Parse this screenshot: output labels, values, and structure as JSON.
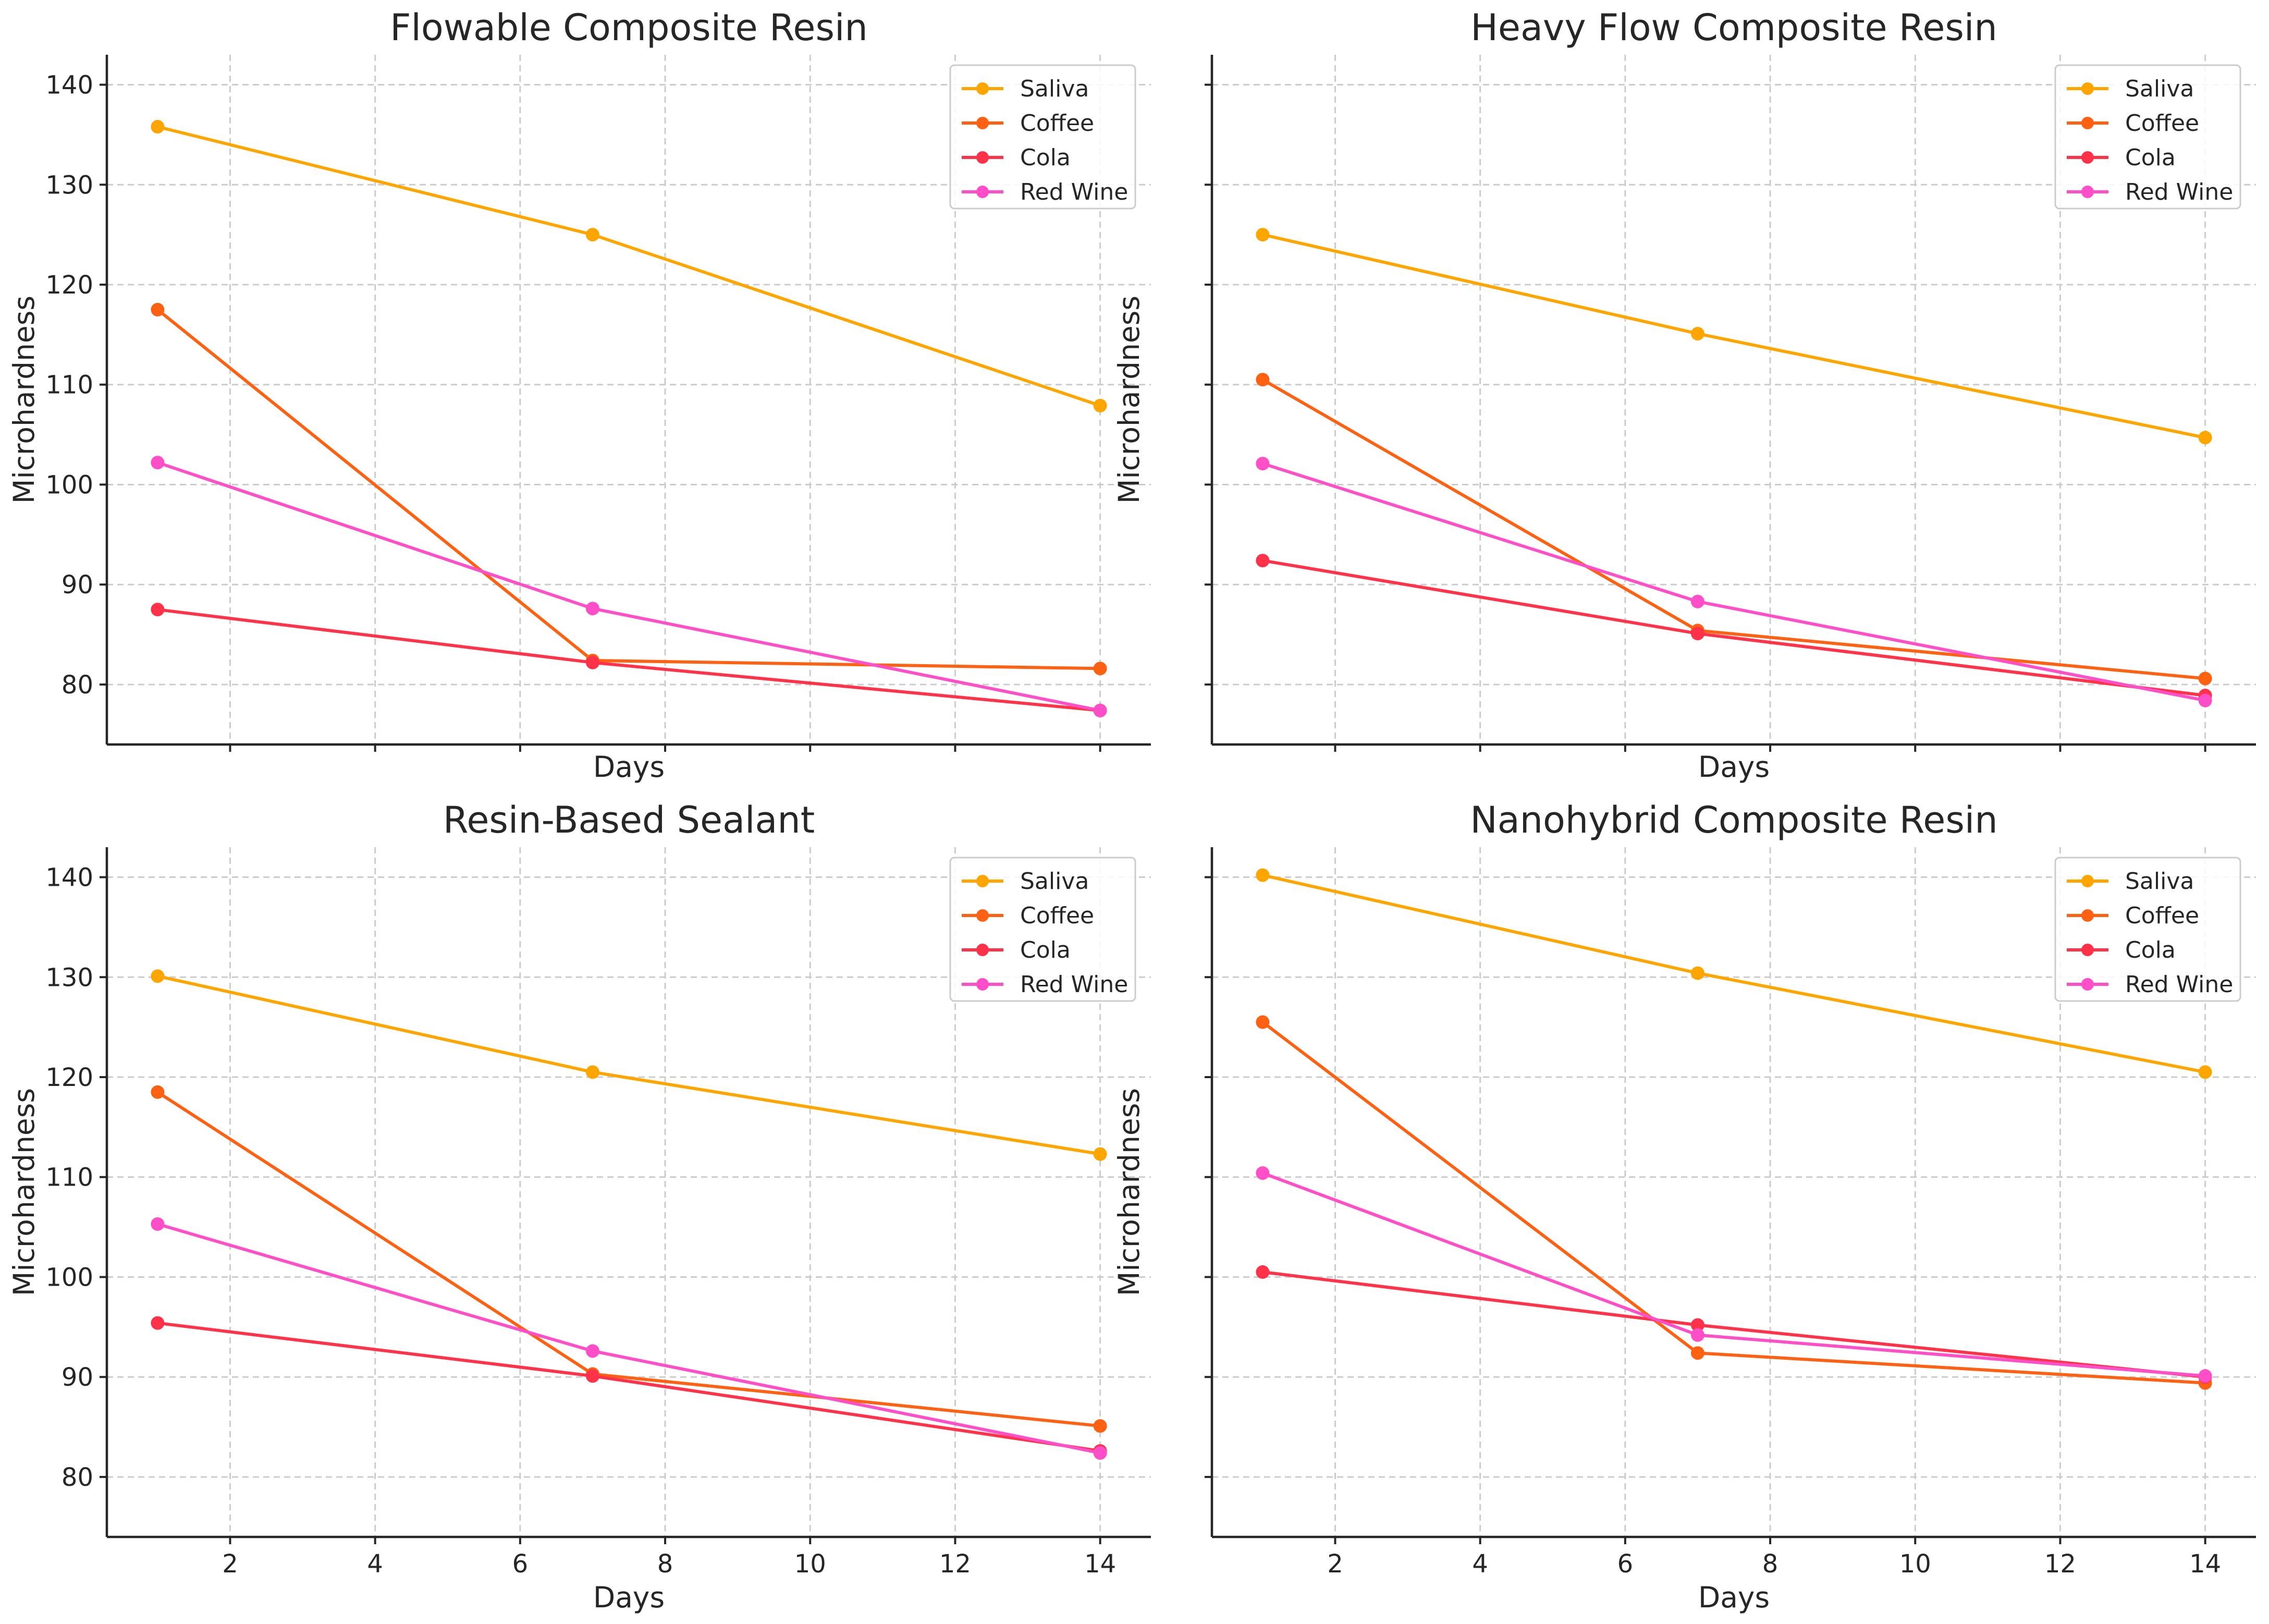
{
  "chart_data": [
    {
      "type": "line",
      "title": "Flowable Composite Resin",
      "xlabel": "Days",
      "ylabel": "Microhardness",
      "x": [
        1,
        7,
        14
      ],
      "xlim": [
        0.3,
        14.7
      ],
      "ylim": [
        74,
        143
      ],
      "xticks": [
        2,
        4,
        6,
        8,
        10,
        12,
        14
      ],
      "yticks": [
        80,
        90,
        100,
        110,
        120,
        130,
        140
      ],
      "show_xticklabels": false,
      "show_yticklabels": true,
      "grid": true,
      "legend": "top-right",
      "series": [
        {
          "name": "Saliva",
          "values": [
            135.8,
            125.0,
            107.9
          ]
        },
        {
          "name": "Coffee",
          "values": [
            117.5,
            82.4,
            81.6
          ]
        },
        {
          "name": "Cola",
          "values": [
            87.5,
            82.2,
            77.4
          ]
        },
        {
          "name": "Red Wine",
          "values": [
            102.2,
            87.6,
            77.4
          ]
        }
      ]
    },
    {
      "type": "line",
      "title": "Heavy Flow Composite Resin",
      "xlabel": "Days",
      "ylabel": "Microhardness",
      "x": [
        1,
        7,
        14
      ],
      "xlim": [
        0.3,
        14.7
      ],
      "ylim": [
        74,
        143
      ],
      "xticks": [
        2,
        4,
        6,
        8,
        10,
        12,
        14
      ],
      "yticks": [
        80,
        90,
        100,
        110,
        120,
        130,
        140
      ],
      "show_xticklabels": false,
      "show_yticklabels": false,
      "grid": true,
      "legend": "top-right",
      "series": [
        {
          "name": "Saliva",
          "values": [
            125.0,
            115.1,
            104.7
          ]
        },
        {
          "name": "Coffee",
          "values": [
            110.5,
            85.4,
            80.6
          ]
        },
        {
          "name": "Cola",
          "values": [
            92.4,
            85.1,
            78.9
          ]
        },
        {
          "name": "Red Wine",
          "values": [
            102.1,
            88.3,
            78.4
          ]
        }
      ]
    },
    {
      "type": "line",
      "title": "Resin-Based Sealant",
      "xlabel": "Days",
      "ylabel": "Microhardness",
      "x": [
        1,
        7,
        14
      ],
      "xlim": [
        0.3,
        14.7
      ],
      "ylim": [
        74,
        143
      ],
      "xticks": [
        2,
        4,
        6,
        8,
        10,
        12,
        14
      ],
      "yticks": [
        80,
        90,
        100,
        110,
        120,
        130,
        140
      ],
      "show_xticklabels": true,
      "show_yticklabels": true,
      "grid": true,
      "legend": "top-right",
      "series": [
        {
          "name": "Saliva",
          "values": [
            130.1,
            120.5,
            112.3
          ]
        },
        {
          "name": "Coffee",
          "values": [
            118.5,
            90.3,
            85.1
          ]
        },
        {
          "name": "Cola",
          "values": [
            95.4,
            90.1,
            82.6
          ]
        },
        {
          "name": "Red Wine",
          "values": [
            105.3,
            92.6,
            82.4
          ]
        }
      ]
    },
    {
      "type": "line",
      "title": "Nanohybrid Composite Resin",
      "xlabel": "Days",
      "ylabel": "Microhardness",
      "x": [
        1,
        7,
        14
      ],
      "xlim": [
        0.3,
        14.7
      ],
      "ylim": [
        74,
        143
      ],
      "xticks": [
        2,
        4,
        6,
        8,
        10,
        12,
        14
      ],
      "yticks": [
        80,
        90,
        100,
        110,
        120,
        130,
        140
      ],
      "show_xticklabels": true,
      "show_yticklabels": false,
      "grid": true,
      "legend": "top-right",
      "series": [
        {
          "name": "Saliva",
          "values": [
            140.2,
            130.4,
            120.5
          ]
        },
        {
          "name": "Coffee",
          "values": [
            125.5,
            92.4,
            89.4
          ]
        },
        {
          "name": "Cola",
          "values": [
            100.5,
            95.2,
            90.0
          ]
        },
        {
          "name": "Red Wine",
          "values": [
            110.4,
            94.2,
            90.1
          ]
        }
      ]
    }
  ],
  "colors": {
    "Saliva": "#FFA500",
    "Coffee": "#FF6113",
    "Cola": "#FF3249",
    "Red Wine": "#FF4FC8"
  }
}
